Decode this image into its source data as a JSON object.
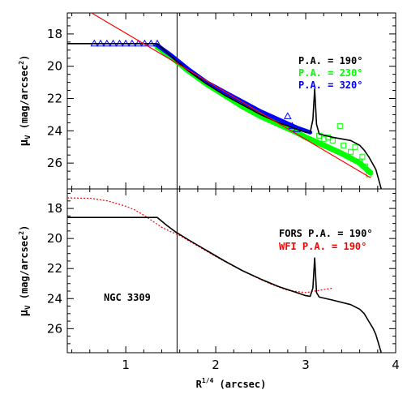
{
  "chart_data": [
    {
      "type": "line",
      "panel": "top",
      "xlim": [
        0.35,
        4.0
      ],
      "ylim": [
        27.6,
        16.7
      ],
      "y_inverted": true,
      "ylabel": "μ_V (mag/arcsec²)",
      "ylabel_main": "μ",
      "ylabel_sub": "V",
      "ylabel_rest": " (mag/arcsec",
      "ylabel_sup": "2",
      "ylabel_close": ")",
      "yticks": [
        18,
        20,
        22,
        24,
        26
      ],
      "yticklabels": [
        "18",
        "20",
        "22",
        "24",
        "26"
      ],
      "xticks": [
        1,
        2,
        3,
        4
      ],
      "vline_x": 1.57,
      "legend": [
        {
          "label": "P.A. = 190°",
          "color": "#000000"
        },
        {
          "label": "P.A. = 230°",
          "color": "#00ff00"
        },
        {
          "label": "P.A. = 320°",
          "color": "#0000ff"
        }
      ],
      "series": [
        {
          "name": "P.A. = 190°",
          "color": "#000000",
          "style": "line",
          "x": [
            0.35,
            1.35,
            1.45,
            1.55,
            1.7,
            1.9,
            2.1,
            2.3,
            2.5,
            2.7,
            2.9,
            3.0,
            3.05,
            3.08,
            3.1,
            3.12,
            3.15,
            3.3,
            3.5,
            3.6,
            3.65,
            3.7,
            3.75,
            3.78,
            3.8,
            3.82,
            3.84
          ],
          "y": [
            18.6,
            18.6,
            19.1,
            19.6,
            20.3,
            21.1,
            21.8,
            22.4,
            23.0,
            23.5,
            23.9,
            24.1,
            24.1,
            23.3,
            21.4,
            23.6,
            24.2,
            24.4,
            24.6,
            24.9,
            25.2,
            25.6,
            26.1,
            26.4,
            26.8,
            27.2,
            27.6
          ]
        },
        {
          "name": "P.A. = 230°",
          "color": "#00ff00",
          "style": "band",
          "x": [
            1.35,
            1.5,
            1.7,
            1.9,
            2.1,
            2.3,
            2.5,
            2.7,
            2.9,
            3.0,
            3.2,
            3.4,
            3.6,
            3.72
          ],
          "y": [
            18.8,
            19.4,
            20.3,
            21.1,
            21.8,
            22.5,
            23.1,
            23.6,
            24.1,
            24.4,
            24.9,
            25.4,
            26.0,
            26.6
          ]
        },
        {
          "name": "P.A. = 230° points",
          "color": "#00ff00",
          "style": "squares",
          "x": [
            3.15,
            3.2,
            3.25,
            3.3,
            3.38,
            3.42,
            3.5,
            3.55,
            3.6,
            3.63,
            3.66,
            3.7
          ],
          "y": [
            24.3,
            24.5,
            24.4,
            24.6,
            23.7,
            24.9,
            25.3,
            25.0,
            25.9,
            25.6,
            26.2,
            26.7
          ]
        },
        {
          "name": "P.A. = 320°",
          "color": "#0000ff",
          "style": "thick",
          "x": [
            1.35,
            1.5,
            1.7,
            1.9,
            2.1,
            2.3,
            2.5,
            2.7,
            2.9,
            3.05
          ],
          "y": [
            18.7,
            19.3,
            20.2,
            21.0,
            21.6,
            22.2,
            22.8,
            23.3,
            23.8,
            24.1
          ]
        },
        {
          "name": "P.A. = 320° triangles",
          "color": "#0000ff",
          "style": "triangles",
          "x": [
            0.65,
            0.72,
            0.79,
            0.86,
            0.93,
            1.0,
            1.07,
            1.14,
            1.21,
            1.28,
            1.35,
            2.8,
            2.85,
            2.9
          ],
          "y": [
            18.6,
            18.6,
            18.6,
            18.6,
            18.6,
            18.6,
            18.6,
            18.6,
            18.6,
            18.6,
            18.6,
            23.1,
            23.7,
            23.9
          ]
        },
        {
          "name": "fit",
          "color": "#ff0000",
          "style": "line",
          "x": [
            0.62,
            3.72
          ],
          "y": [
            16.7,
            26.9
          ]
        }
      ]
    },
    {
      "type": "line",
      "panel": "bottom",
      "xlim": [
        0.35,
        4.0
      ],
      "ylim": [
        27.6,
        16.7
      ],
      "y_inverted": true,
      "ylabel": "μ_V (mag/arcsec²)",
      "ylabel_main": "μ",
      "ylabel_sub": "V",
      "ylabel_rest": " (mag/arcsec",
      "ylabel_sup": "2",
      "ylabel_close": ")",
      "yticks": [
        18,
        20,
        22,
        24,
        26
      ],
      "yticklabels": [
        "18",
        "20",
        "22",
        "24",
        "26"
      ],
      "xticks": [
        1,
        2,
        3,
        4
      ],
      "xticklabels": [
        "1",
        "2",
        "3",
        "4"
      ],
      "xlabel_main": "R",
      "xlabel_sup": "1/4",
      "xlabel_rest": " (arcsec)",
      "vline_x": 1.57,
      "annotation": "NGC 3309",
      "legend": [
        {
          "label": "FORS P.A. = 190°",
          "color": "#000000"
        },
        {
          "label": "WFI P.A. = 190°",
          "color": "#ff0000"
        }
      ],
      "series": [
        {
          "name": "FORS P.A. = 190°",
          "color": "#000000",
          "style": "line",
          "x": [
            0.35,
            1.35,
            1.45,
            1.55,
            1.7,
            1.9,
            2.1,
            2.3,
            2.5,
            2.7,
            2.9,
            3.0,
            3.05,
            3.08,
            3.1,
            3.12,
            3.15,
            3.3,
            3.5,
            3.6,
            3.65,
            3.7,
            3.75,
            3.78,
            3.8,
            3.82,
            3.84
          ],
          "y": [
            18.6,
            18.6,
            19.1,
            19.55,
            20.1,
            20.8,
            21.5,
            22.15,
            22.7,
            23.2,
            23.6,
            23.8,
            23.85,
            23.3,
            21.3,
            23.6,
            23.9,
            24.1,
            24.4,
            24.7,
            25.0,
            25.5,
            26.0,
            26.4,
            26.8,
            27.2,
            27.6
          ]
        },
        {
          "name": "WFI P.A. = 190°",
          "color": "#ff0000",
          "style": "dotted",
          "x": [
            0.35,
            0.6,
            0.8,
            1.0,
            1.1,
            1.2,
            1.3,
            1.4,
            1.5,
            1.6,
            1.8,
            2.0,
            2.2,
            2.4,
            2.6,
            2.8,
            3.0,
            3.1,
            3.2,
            3.3
          ],
          "y": [
            17.3,
            17.32,
            17.5,
            17.85,
            18.1,
            18.45,
            18.85,
            19.25,
            19.55,
            19.8,
            20.5,
            21.2,
            21.85,
            22.45,
            23.0,
            23.45,
            23.6,
            23.5,
            23.4,
            23.3
          ]
        }
      ]
    }
  ]
}
